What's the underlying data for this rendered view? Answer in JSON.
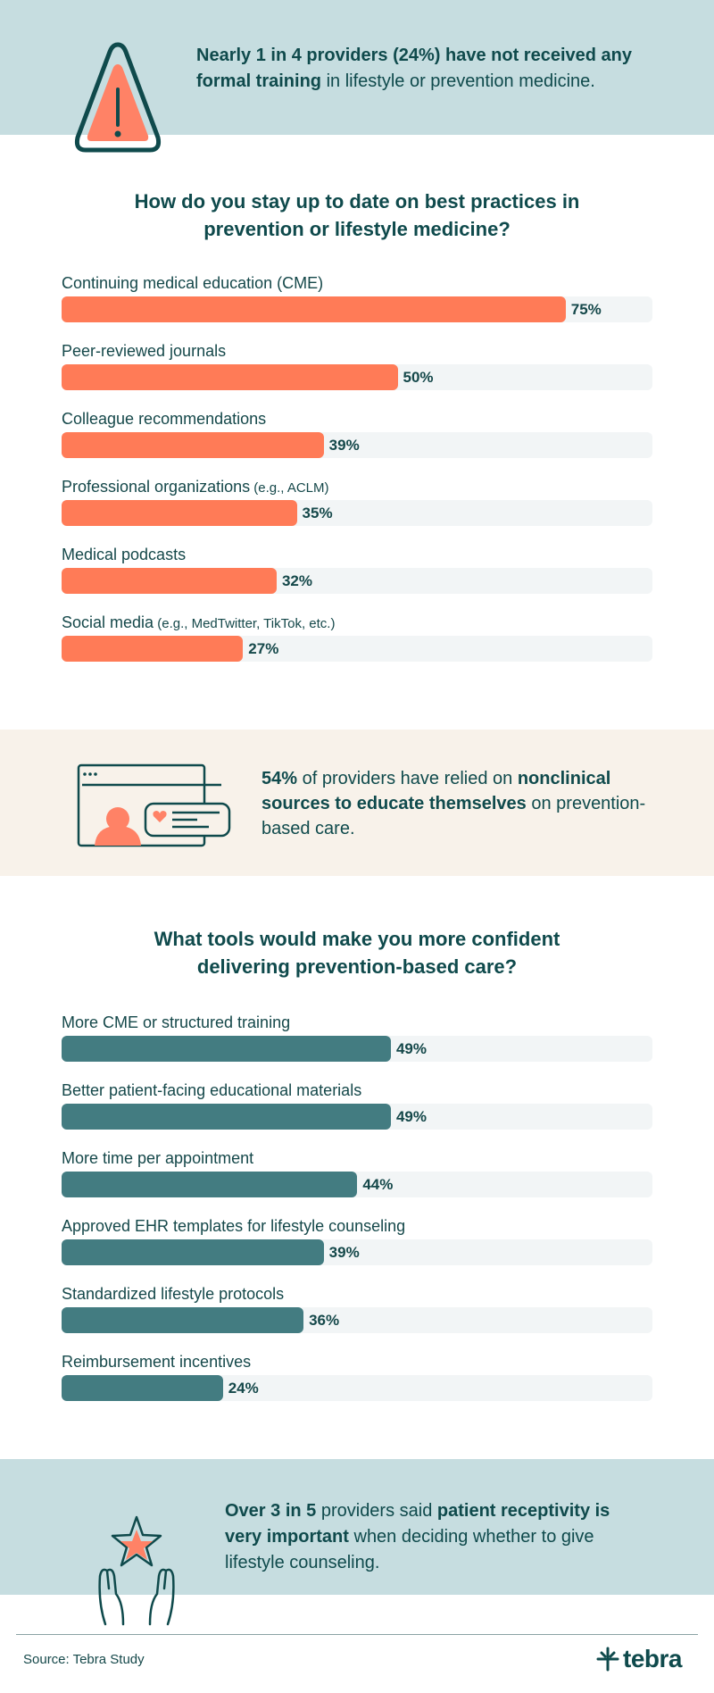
{
  "callouts": {
    "top": {
      "bold1": "Nearly 1 in 4 providers (24%) have not received any formal training",
      "rest1": " in lifestyle or prevention medicine."
    },
    "middle": {
      "bold1": "54%",
      "rest1": " of providers have relied on ",
      "bold2": "nonclinical sources to educate themselves",
      "rest2": " on prevention-based care."
    },
    "bottom": {
      "bold1": "Over 3 in 5",
      "rest1": " providers said ",
      "bold2": "patient receptivity is very important",
      "rest2": " when deciding whether to give lifestyle counseling."
    }
  },
  "icons": {
    "top": "warning-triangle-icon",
    "middle": "browser-profile-chat-icon",
    "bottom": "hands-star-icon",
    "logo": "tebra-logo-icon"
  },
  "colors": {
    "orange": "#ff7b57",
    "teal": "#437c81",
    "track": "#f2f5f6",
    "text": "#0f4a4c"
  },
  "chart_data": [
    {
      "type": "bar",
      "orientation": "horizontal",
      "title": "How do you stay up to date on best practices in prevention or lifestyle medicine?",
      "unit": "%",
      "xlim": [
        0,
        100
      ],
      "categories": [
        {
          "label": "Continuing medical education (CME)",
          "note": ""
        },
        {
          "label": "Peer-reviewed journals",
          "note": ""
        },
        {
          "label": "Colleague recommendations",
          "note": ""
        },
        {
          "label": "Professional organizations",
          "note": " (e.g., ACLM)"
        },
        {
          "label": "Medical podcasts",
          "note": ""
        },
        {
          "label": "Social media",
          "note": " (e.g., MedTwitter, TikTok, etc.)"
        }
      ],
      "values": [
        75,
        50,
        39,
        35,
        32,
        27
      ],
      "value_labels": [
        "75%",
        "50%",
        "39%",
        "35%",
        "32%",
        "27%"
      ],
      "color": "#ff7b57"
    },
    {
      "type": "bar",
      "orientation": "horizontal",
      "title": "What tools would make you more confident delivering prevention-based care?",
      "unit": "%",
      "xlim": [
        0,
        100
      ],
      "categories": [
        {
          "label": "More CME or structured training",
          "note": ""
        },
        {
          "label": "Better patient-facing educational materials",
          "note": ""
        },
        {
          "label": "More time per appointment",
          "note": ""
        },
        {
          "label": "Approved EHR templates for lifestyle counseling",
          "note": ""
        },
        {
          "label": "Standardized lifestyle protocols",
          "note": ""
        },
        {
          "label": "Reimbursement incentives",
          "note": ""
        }
      ],
      "values": [
        49,
        49,
        44,
        39,
        36,
        24
      ],
      "value_labels": [
        "49%",
        "49%",
        "44%",
        "39%",
        "36%",
        "24%"
      ],
      "color": "#437c81"
    }
  ],
  "footer": {
    "source": "Source: Tebra Study",
    "logo_text": "tebra"
  }
}
